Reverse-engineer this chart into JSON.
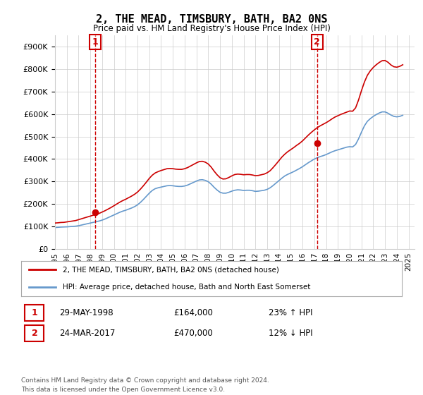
{
  "title": "2, THE MEAD, TIMSBURY, BATH, BA2 0NS",
  "subtitle": "Price paid vs. HM Land Registry's House Price Index (HPI)",
  "ylim": [
    0,
    950000
  ],
  "yticks": [
    0,
    100000,
    200000,
    300000,
    400000,
    500000,
    600000,
    700000,
    800000,
    900000
  ],
  "xlim_start": 1995.0,
  "xlim_end": 2025.5,
  "sale1_date": 1998.41,
  "sale1_price": 164000,
  "sale1_label": "1",
  "sale1_hpi_pct": "23% ↑ HPI",
  "sale1_date_str": "29-MAY-1998",
  "sale2_date": 2017.23,
  "sale2_price": 470000,
  "sale2_label": "2",
  "sale2_hpi_pct": "12% ↓ HPI",
  "sale2_date_str": "24-MAR-2017",
  "red_line_color": "#cc0000",
  "blue_line_color": "#6699cc",
  "grid_color": "#cccccc",
  "background_color": "#ffffff",
  "legend_label1": "2, THE MEAD, TIMSBURY, BATH, BA2 0NS (detached house)",
  "legend_label2": "HPI: Average price, detached house, Bath and North East Somerset",
  "footer1": "Contains HM Land Registry data © Crown copyright and database right 2024.",
  "footer2": "This data is licensed under the Open Government Licence v3.0.",
  "hpi_data_x": [
    1995.0,
    1995.25,
    1995.5,
    1995.75,
    1996.0,
    1996.25,
    1996.5,
    1996.75,
    1997.0,
    1997.25,
    1997.5,
    1997.75,
    1998.0,
    1998.25,
    1998.5,
    1998.75,
    1999.0,
    1999.25,
    1999.5,
    1999.75,
    2000.0,
    2000.25,
    2000.5,
    2000.75,
    2001.0,
    2001.25,
    2001.5,
    2001.75,
    2002.0,
    2002.25,
    2002.5,
    2002.75,
    2003.0,
    2003.25,
    2003.5,
    2003.75,
    2004.0,
    2004.25,
    2004.5,
    2004.75,
    2005.0,
    2005.25,
    2005.5,
    2005.75,
    2006.0,
    2006.25,
    2006.5,
    2006.75,
    2007.0,
    2007.25,
    2007.5,
    2007.75,
    2008.0,
    2008.25,
    2008.5,
    2008.75,
    2009.0,
    2009.25,
    2009.5,
    2009.75,
    2010.0,
    2010.25,
    2010.5,
    2010.75,
    2011.0,
    2011.25,
    2011.5,
    2011.75,
    2012.0,
    2012.25,
    2012.5,
    2012.75,
    2013.0,
    2013.25,
    2013.5,
    2013.75,
    2014.0,
    2014.25,
    2014.5,
    2014.75,
    2015.0,
    2015.25,
    2015.5,
    2015.75,
    2016.0,
    2016.25,
    2016.5,
    2016.75,
    2017.0,
    2017.25,
    2017.5,
    2017.75,
    2018.0,
    2018.25,
    2018.5,
    2018.75,
    2019.0,
    2019.25,
    2019.5,
    2019.75,
    2020.0,
    2020.25,
    2020.5,
    2020.75,
    2021.0,
    2021.25,
    2021.5,
    2021.75,
    2022.0,
    2022.25,
    2022.5,
    2022.75,
    2023.0,
    2023.25,
    2023.5,
    2023.75,
    2024.0,
    2024.25,
    2024.5
  ],
  "hpi_data_y": [
    95000,
    96000,
    97000,
    97500,
    98000,
    99000,
    100000,
    101000,
    103000,
    106000,
    109000,
    112000,
    115000,
    118000,
    121000,
    124000,
    128000,
    133000,
    139000,
    145000,
    151000,
    157000,
    163000,
    168000,
    172000,
    177000,
    182000,
    188000,
    196000,
    207000,
    220000,
    234000,
    248000,
    260000,
    268000,
    272000,
    275000,
    278000,
    281000,
    282000,
    281000,
    279000,
    278000,
    278000,
    280000,
    284000,
    290000,
    296000,
    302000,
    307000,
    308000,
    305000,
    299000,
    288000,
    274000,
    262000,
    252000,
    248000,
    248000,
    252000,
    257000,
    261000,
    263000,
    262000,
    260000,
    261000,
    261000,
    259000,
    256000,
    257000,
    259000,
    261000,
    265000,
    272000,
    282000,
    293000,
    304000,
    315000,
    325000,
    332000,
    338000,
    344000,
    351000,
    358000,
    366000,
    375000,
    384000,
    392000,
    400000,
    406000,
    411000,
    415000,
    420000,
    426000,
    432000,
    437000,
    441000,
    445000,
    449000,
    453000,
    455000,
    454000,
    465000,
    490000,
    520000,
    548000,
    568000,
    580000,
    590000,
    598000,
    605000,
    610000,
    610000,
    604000,
    596000,
    590000,
    588000,
    590000,
    595000
  ],
  "red_data_x": [
    1995.0,
    1995.25,
    1995.5,
    1995.75,
    1996.0,
    1996.25,
    1996.5,
    1996.75,
    1997.0,
    1997.25,
    1997.5,
    1997.75,
    1998.0,
    1998.25,
    1998.5,
    1998.75,
    1999.0,
    1999.25,
    1999.5,
    1999.75,
    2000.0,
    2000.25,
    2000.5,
    2000.75,
    2001.0,
    2001.25,
    2001.5,
    2001.75,
    2002.0,
    2002.25,
    2002.5,
    2002.75,
    2003.0,
    2003.25,
    2003.5,
    2003.75,
    2004.0,
    2004.25,
    2004.5,
    2004.75,
    2005.0,
    2005.25,
    2005.5,
    2005.75,
    2006.0,
    2006.25,
    2006.5,
    2006.75,
    2007.0,
    2007.25,
    2007.5,
    2007.75,
    2008.0,
    2008.25,
    2008.5,
    2008.75,
    2009.0,
    2009.25,
    2009.5,
    2009.75,
    2010.0,
    2010.25,
    2010.5,
    2010.75,
    2011.0,
    2011.25,
    2011.5,
    2011.75,
    2012.0,
    2012.25,
    2012.5,
    2012.75,
    2013.0,
    2013.25,
    2013.5,
    2013.75,
    2014.0,
    2014.25,
    2014.5,
    2014.75,
    2015.0,
    2015.25,
    2015.5,
    2015.75,
    2016.0,
    2016.25,
    2016.5,
    2016.75,
    2017.0,
    2017.25,
    2017.5,
    2017.75,
    2018.0,
    2018.25,
    2018.5,
    2018.75,
    2019.0,
    2019.25,
    2019.5,
    2019.75,
    2020.0,
    2020.25,
    2020.5,
    2020.75,
    2021.0,
    2021.25,
    2021.5,
    2021.75,
    2022.0,
    2022.25,
    2022.5,
    2022.75,
    2023.0,
    2023.25,
    2023.5,
    2023.75,
    2024.0,
    2024.25,
    2024.5
  ],
  "red_data_y": [
    115000,
    116000,
    117500,
    118000,
    120000,
    122000,
    124000,
    126000,
    130000,
    134000,
    138000,
    142000,
    146000,
    150000,
    154000,
    158000,
    164000,
    170000,
    177000,
    184000,
    192000,
    200000,
    208000,
    215000,
    221000,
    228000,
    235000,
    243000,
    253000,
    266000,
    281000,
    297000,
    314000,
    328000,
    338000,
    344000,
    349000,
    353000,
    357000,
    358000,
    357000,
    355000,
    354000,
    354000,
    357000,
    362000,
    369000,
    376000,
    383000,
    389000,
    390000,
    386000,
    378000,
    364000,
    346000,
    330000,
    317000,
    311000,
    312000,
    318000,
    325000,
    331000,
    333000,
    332000,
    330000,
    331000,
    331000,
    329000,
    326000,
    327000,
    330000,
    333000,
    339000,
    348000,
    362000,
    377000,
    393000,
    409000,
    422000,
    433000,
    442000,
    451000,
    461000,
    470000,
    481000,
    494000,
    507000,
    519000,
    530000,
    540000,
    548000,
    555000,
    562000,
    570000,
    579000,
    587000,
    593000,
    599000,
    604000,
    609000,
    614000,
    613000,
    628000,
    663000,
    705000,
    743000,
    773000,
    793000,
    808000,
    820000,
    830000,
    838000,
    839000,
    831000,
    819000,
    811000,
    809000,
    813000,
    820000
  ],
  "xtick_years": [
    1995,
    1996,
    1997,
    1998,
    1999,
    2000,
    2001,
    2002,
    2003,
    2004,
    2005,
    2006,
    2007,
    2008,
    2009,
    2010,
    2011,
    2012,
    2013,
    2014,
    2015,
    2016,
    2017,
    2018,
    2019,
    2020,
    2021,
    2022,
    2023,
    2024,
    2025
  ]
}
